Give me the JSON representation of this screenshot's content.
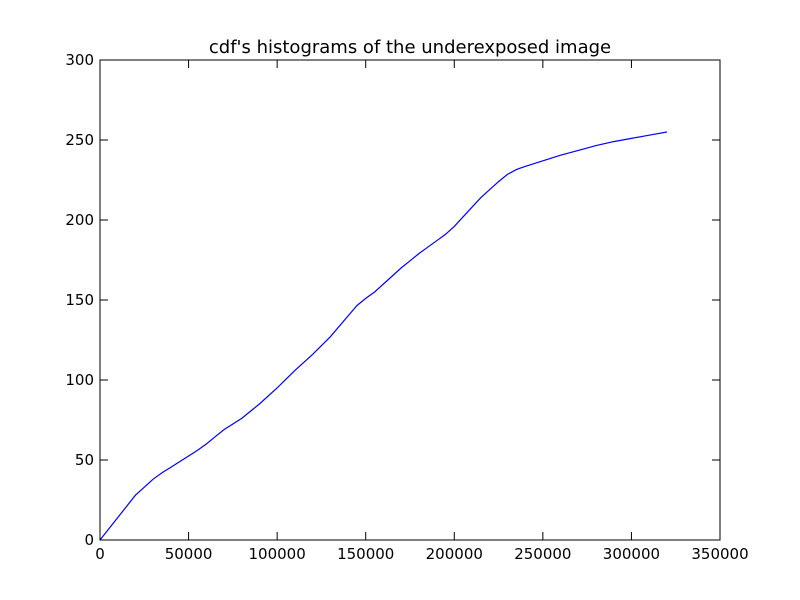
{
  "chart_data": {
    "type": "line",
    "title": "cdf's histograms of the underexposed image",
    "xlabel": "",
    "ylabel": "",
    "xlim": [
      0,
      350000
    ],
    "ylim": [
      0,
      300
    ],
    "xticks": [
      0,
      50000,
      100000,
      150000,
      200000,
      250000,
      300000,
      350000
    ],
    "yticks": [
      0,
      50,
      100,
      150,
      200,
      250,
      300
    ],
    "grid": false,
    "line_color": "#0000ff",
    "series": [
      {
        "points": [
          [
            0,
            0
          ],
          [
            5000,
            7
          ],
          [
            10000,
            14
          ],
          [
            15000,
            21
          ],
          [
            20000,
            28
          ],
          [
            25000,
            33
          ],
          [
            30000,
            38
          ],
          [
            35000,
            42
          ],
          [
            40000,
            45.5
          ],
          [
            45000,
            49
          ],
          [
            50000,
            52.5
          ],
          [
            55000,
            56
          ],
          [
            60000,
            60
          ],
          [
            65000,
            64.5
          ],
          [
            70000,
            69
          ],
          [
            80000,
            76
          ],
          [
            90000,
            85
          ],
          [
            100000,
            95
          ],
          [
            110000,
            106
          ],
          [
            120000,
            116
          ],
          [
            130000,
            127
          ],
          [
            140000,
            140
          ],
          [
            145000,
            146.5
          ],
          [
            150000,
            151
          ],
          [
            155000,
            155
          ],
          [
            160000,
            160
          ],
          [
            165000,
            165
          ],
          [
            170000,
            170
          ],
          [
            175000,
            174.5
          ],
          [
            180000,
            179
          ],
          [
            185000,
            183
          ],
          [
            190000,
            187
          ],
          [
            195000,
            191
          ],
          [
            200000,
            196
          ],
          [
            205000,
            202
          ],
          [
            210000,
            208
          ],
          [
            215000,
            214
          ],
          [
            220000,
            219
          ],
          [
            225000,
            224
          ],
          [
            230000,
            228.5
          ],
          [
            235000,
            231.5
          ],
          [
            240000,
            233.5
          ],
          [
            250000,
            237
          ],
          [
            260000,
            240.5
          ],
          [
            270000,
            243.5
          ],
          [
            280000,
            246.5
          ],
          [
            290000,
            249
          ],
          [
            300000,
            251
          ],
          [
            310000,
            253
          ],
          [
            320000,
            255
          ]
        ]
      }
    ]
  }
}
